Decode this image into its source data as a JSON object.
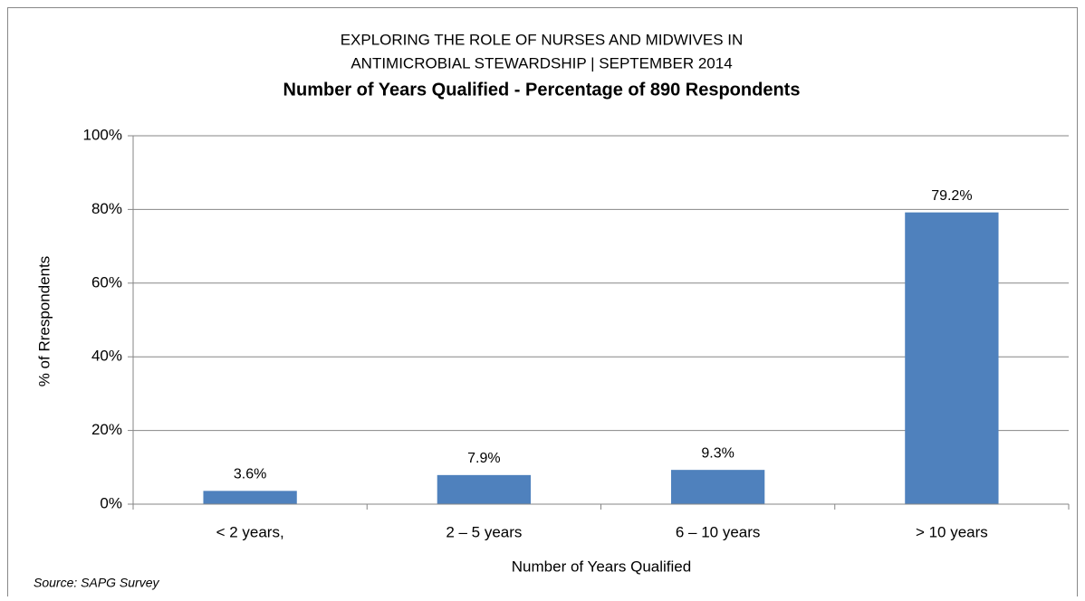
{
  "chart_data": {
    "type": "bar",
    "title": [
      "EXPLORING THE ROLE OF NURSES AND MIDWIVES IN",
      "ANTIMICROBIAL STEWARDSHIP | SEPTEMBER 2014"
    ],
    "subtitle": "Number of Years Qualified - Percentage of 890 Respondents",
    "x_label": "Number of Years Qualified",
    "y_label": "% of Rrespondents",
    "source": "Source: SAPG Survey",
    "categories": [
      "< 2 years,",
      "2 – 5 years",
      "6 – 10 years",
      "> 10 years"
    ],
    "values": [
      3.6,
      7.9,
      9.3,
      79.2
    ],
    "value_labels": [
      "3.6%",
      "7.9%",
      "9.3%",
      "79.2%"
    ],
    "color": "#4f81bd",
    "ylim": [
      0,
      100
    ],
    "yticks": [
      {
        "value": 0,
        "label": "0%"
      },
      {
        "value": 20,
        "label": "20%"
      },
      {
        "value": 40,
        "label": "40%"
      },
      {
        "value": 60,
        "label": "60%"
      },
      {
        "value": 80,
        "label": "80%"
      },
      {
        "value": 100,
        "label": "100%"
      }
    ],
    "grid": true
  }
}
